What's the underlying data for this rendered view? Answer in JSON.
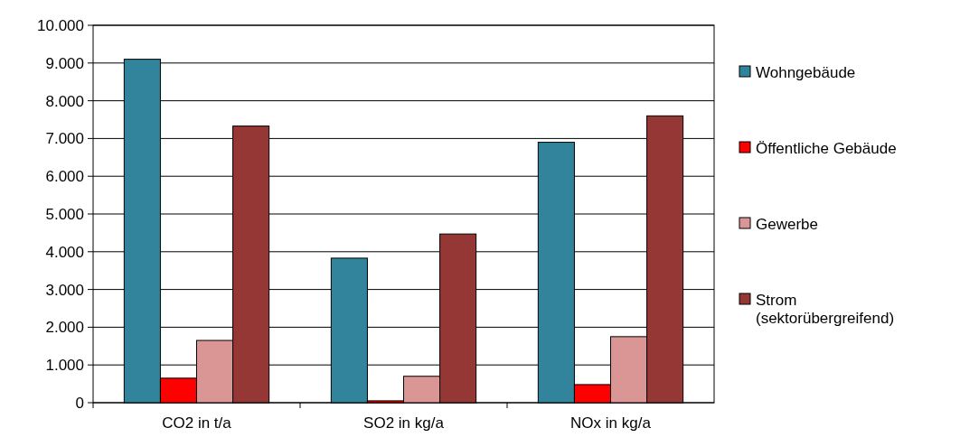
{
  "chart_data": {
    "type": "bar",
    "categories": [
      "CO2 in t/a",
      "SO2 in kg/a",
      "NOx in kg/a"
    ],
    "series": [
      {
        "name": "Wohngebäude",
        "color": "#31849b",
        "values": [
          9100,
          3830,
          6900
        ]
      },
      {
        "name": "Öffentliche Gebäude",
        "color": "#ff0000",
        "values": [
          650,
          50,
          480
        ]
      },
      {
        "name": "Gewerbe",
        "color": "#d99694",
        "values": [
          1650,
          700,
          1750
        ]
      },
      {
        "name": "Strom (sektorübergreifend)",
        "color": "#953735",
        "values": [
          7330,
          4470,
          7600
        ]
      }
    ],
    "ylim": [
      0,
      10000
    ],
    "yticks": [
      {
        "value": 0,
        "label": "0"
      },
      {
        "value": 1000,
        "label": "1.000"
      },
      {
        "value": 2000,
        "label": "2.000"
      },
      {
        "value": 3000,
        "label": "3.000"
      },
      {
        "value": 4000,
        "label": "4.000"
      },
      {
        "value": 5000,
        "label": "5.000"
      },
      {
        "value": 6000,
        "label": "6.000"
      },
      {
        "value": 7000,
        "label": "7.000"
      },
      {
        "value": 8000,
        "label": "8.000"
      },
      {
        "value": 9000,
        "label": "9.000"
      },
      {
        "value": 10000,
        "label": "10.000"
      }
    ],
    "grid": "y",
    "legend": "right"
  }
}
